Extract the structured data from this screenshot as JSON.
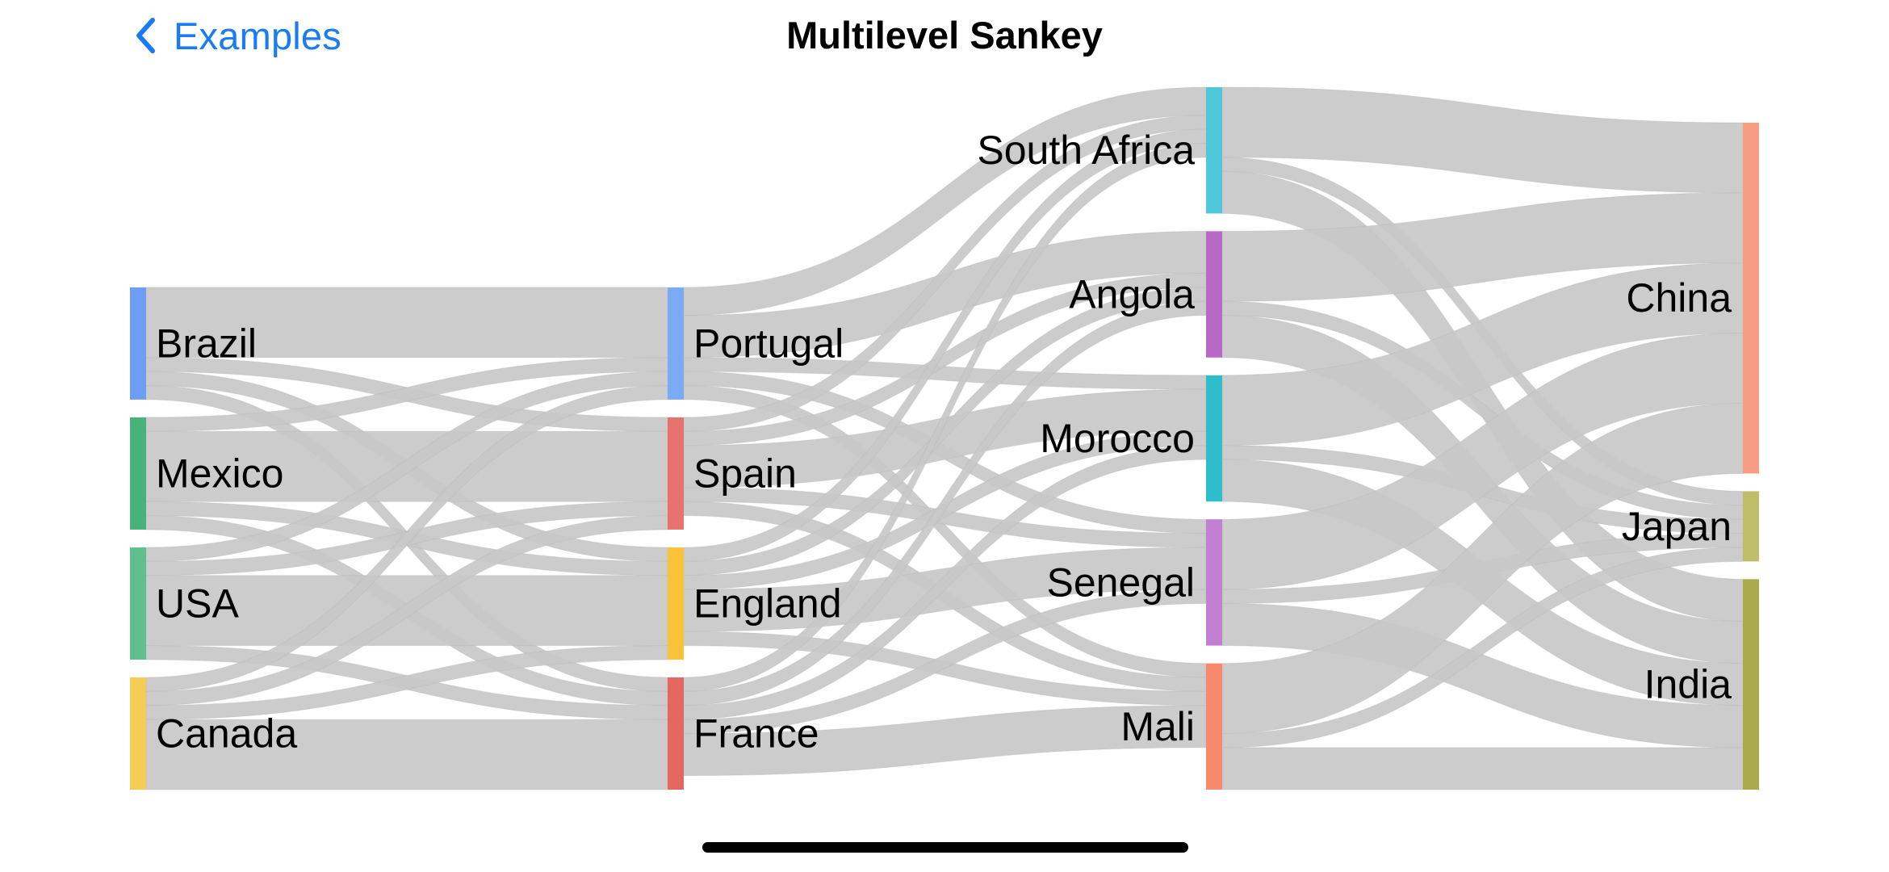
{
  "nav": {
    "back_label": "Examples",
    "title": "Multilevel Sankey",
    "back_icon": "chevron-left-icon"
  },
  "chart_data": {
    "type": "sankey",
    "title": "Multilevel Sankey",
    "link_color": "#c8c8c8",
    "columns": [
      [
        "Brazil",
        "Mexico",
        "USA",
        "Canada"
      ],
      [
        "Portugal",
        "Spain",
        "England",
        "France"
      ],
      [
        "South Africa",
        "Angola",
        "Morocco",
        "Senegal",
        "Mali"
      ],
      [
        "China",
        "Japan",
        "India"
      ]
    ],
    "nodes": [
      {
        "name": "Brazil",
        "color": "#6c9ef5"
      },
      {
        "name": "Mexico",
        "color": "#47b27a"
      },
      {
        "name": "USA",
        "color": "#5fc08e"
      },
      {
        "name": "Canada",
        "color": "#f7cc52"
      },
      {
        "name": "Portugal",
        "color": "#7aabf5"
      },
      {
        "name": "Spain",
        "color": "#e8736e"
      },
      {
        "name": "England",
        "color": "#f8c338"
      },
      {
        "name": "France",
        "color": "#e46861"
      },
      {
        "name": "South Africa",
        "color": "#4fc9d9"
      },
      {
        "name": "Angola",
        "color": "#b869c8"
      },
      {
        "name": "Morocco",
        "color": "#2fbccb"
      },
      {
        "name": "Senegal",
        "color": "#c27ed1"
      },
      {
        "name": "Mali",
        "color": "#f8896a"
      },
      {
        "name": "China",
        "color": "#f79d82"
      },
      {
        "name": "Japan",
        "color": "#bfbd67"
      },
      {
        "name": "India",
        "color": "#a9ab4b"
      }
    ],
    "links": [
      {
        "source": "Brazil",
        "target": "Portugal",
        "value": 5
      },
      {
        "source": "Brazil",
        "target": "Spain",
        "value": 1
      },
      {
        "source": "Brazil",
        "target": "England",
        "value": 1
      },
      {
        "source": "Brazil",
        "target": "France",
        "value": 1
      },
      {
        "source": "Mexico",
        "target": "Portugal",
        "value": 1
      },
      {
        "source": "Mexico",
        "target": "Spain",
        "value": 5
      },
      {
        "source": "Mexico",
        "target": "England",
        "value": 1
      },
      {
        "source": "Mexico",
        "target": "France",
        "value": 1
      },
      {
        "source": "USA",
        "target": "Portugal",
        "value": 1
      },
      {
        "source": "USA",
        "target": "Spain",
        "value": 1
      },
      {
        "source": "USA",
        "target": "England",
        "value": 5
      },
      {
        "source": "USA",
        "target": "France",
        "value": 1
      },
      {
        "source": "Canada",
        "target": "Portugal",
        "value": 1
      },
      {
        "source": "Canada",
        "target": "Spain",
        "value": 1
      },
      {
        "source": "Canada",
        "target": "England",
        "value": 1
      },
      {
        "source": "Canada",
        "target": "France",
        "value": 5
      },
      {
        "source": "Portugal",
        "target": "South Africa",
        "value": 2
      },
      {
        "source": "Portugal",
        "target": "Angola",
        "value": 3
      },
      {
        "source": "Portugal",
        "target": "Morocco",
        "value": 1
      },
      {
        "source": "Portugal",
        "target": "Senegal",
        "value": 1
      },
      {
        "source": "Portugal",
        "target": "Mali",
        "value": 1
      },
      {
        "source": "Spain",
        "target": "South Africa",
        "value": 1
      },
      {
        "source": "Spain",
        "target": "Angola",
        "value": 1
      },
      {
        "source": "Spain",
        "target": "Morocco",
        "value": 3
      },
      {
        "source": "Spain",
        "target": "Senegal",
        "value": 1
      },
      {
        "source": "Spain",
        "target": "Mali",
        "value": 1
      },
      {
        "source": "England",
        "target": "South Africa",
        "value": 1
      },
      {
        "source": "England",
        "target": "Angola",
        "value": 1
      },
      {
        "source": "England",
        "target": "Morocco",
        "value": 1
      },
      {
        "source": "England",
        "target": "Senegal",
        "value": 3
      },
      {
        "source": "England",
        "target": "Mali",
        "value": 1
      },
      {
        "source": "France",
        "target": "South Africa",
        "value": 1
      },
      {
        "source": "France",
        "target": "Angola",
        "value": 1
      },
      {
        "source": "France",
        "target": "Morocco",
        "value": 1
      },
      {
        "source": "France",
        "target": "Senegal",
        "value": 1
      },
      {
        "source": "France",
        "target": "Mali",
        "value": 3
      },
      {
        "source": "South Africa",
        "target": "China",
        "value": 5
      },
      {
        "source": "South Africa",
        "target": "Japan",
        "value": 1
      },
      {
        "source": "South Africa",
        "target": "India",
        "value": 3
      },
      {
        "source": "Angola",
        "target": "China",
        "value": 5
      },
      {
        "source": "Angola",
        "target": "Japan",
        "value": 1
      },
      {
        "source": "Angola",
        "target": "India",
        "value": 3
      },
      {
        "source": "Morocco",
        "target": "China",
        "value": 5
      },
      {
        "source": "Morocco",
        "target": "Japan",
        "value": 1
      },
      {
        "source": "Morocco",
        "target": "India",
        "value": 3
      },
      {
        "source": "Senegal",
        "target": "China",
        "value": 5
      },
      {
        "source": "Senegal",
        "target": "Japan",
        "value": 1
      },
      {
        "source": "Senegal",
        "target": "India",
        "value": 3
      },
      {
        "source": "Mali",
        "target": "China",
        "value": 5
      },
      {
        "source": "Mali",
        "target": "Japan",
        "value": 1
      },
      {
        "source": "Mali",
        "target": "India",
        "value": 3
      }
    ]
  }
}
